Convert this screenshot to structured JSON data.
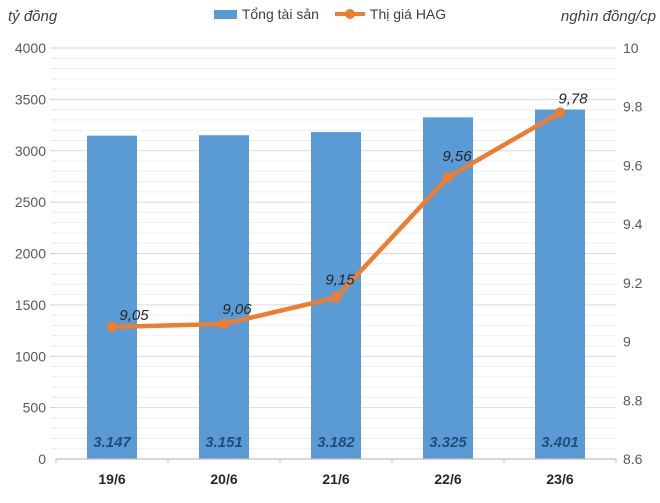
{
  "axis_units": {
    "left": "tỷ đồng",
    "right": "nghìn đồng/cp"
  },
  "chart_data": {
    "type": "combo",
    "categories": [
      "19/6",
      "20/6",
      "21/6",
      "22/6",
      "23/6"
    ],
    "series": [
      {
        "name": "Tổng tài sản",
        "type": "bar",
        "axis": "left",
        "values": [
          3147,
          3151,
          3182,
          3325,
          3401
        ],
        "labels": [
          "3.147",
          "3.151",
          "3.182",
          "3.325",
          "3.401"
        ],
        "color": "#5B9BD5",
        "label_color": "#1F4E79"
      },
      {
        "name": "Thị giá HAG",
        "type": "line",
        "axis": "right",
        "values": [
          9.05,
          9.06,
          9.15,
          9.56,
          9.78
        ],
        "labels": [
          "9,05",
          "9,06",
          "9,15",
          "9,56",
          "9,78"
        ],
        "color": "#ED7D31",
        "label_color": "#262626"
      }
    ],
    "left_axis": {
      "title": "tỷ đồng",
      "min": 0,
      "max": 4000,
      "step": 500,
      "minor_step": 100,
      "ticks": [
        "4000",
        "3500",
        "3000",
        "2500",
        "2000",
        "1500",
        "1000",
        "500",
        "0"
      ]
    },
    "right_axis": {
      "title": "nghìn đồng/cp",
      "min": 8.6,
      "max": 10,
      "step": 0.2,
      "ticks": [
        "10",
        "9.8",
        "9.6",
        "9.4",
        "9.2",
        "9",
        "8.8",
        "8.6"
      ]
    },
    "grid": {
      "major": true,
      "minor": true
    },
    "legend_position": "top"
  }
}
